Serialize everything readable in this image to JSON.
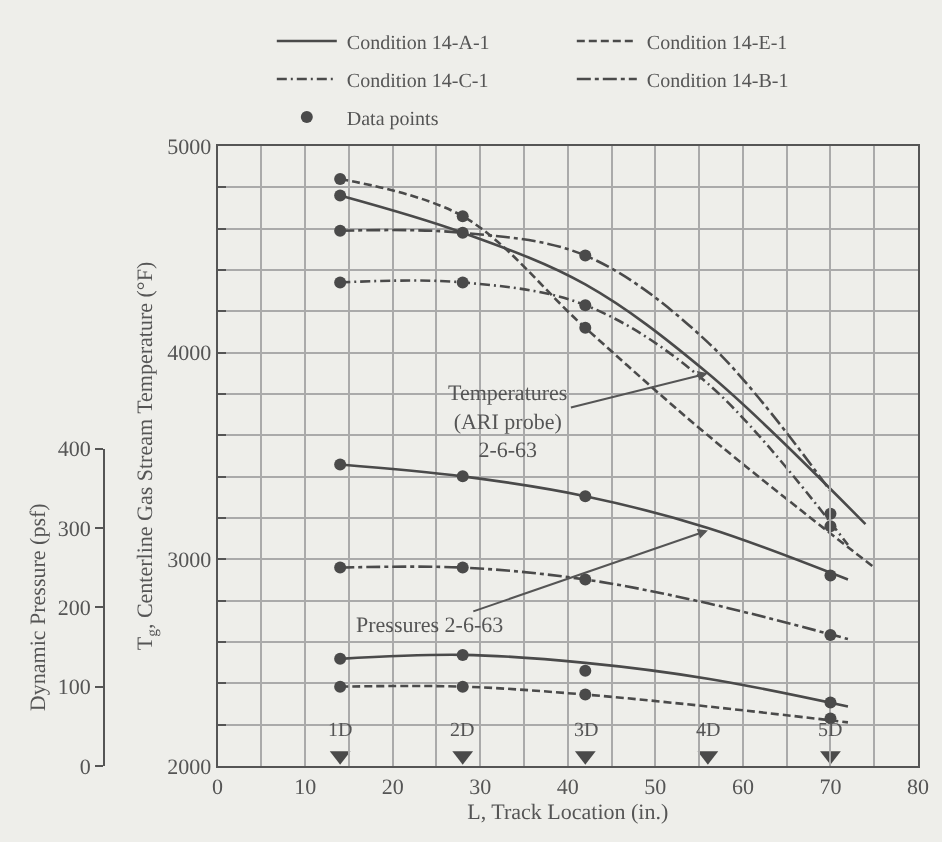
{
  "chart_data": {
    "type": "line",
    "xlabel": "L, Track Location (in.)",
    "ylabel": "T$_{g}$, Centerline Gas Stream Temperature (°F)",
    "y2label": "Dynamic Pressure (psf)",
    "xlim": [
      0,
      80
    ],
    "xticks": [
      0,
      {
        "value": 5,
        "label": null
      },
      10,
      {
        "value": 15,
        "label": null
      },
      20,
      {
        "value": 25,
        "label": null
      },
      30,
      {
        "value": 35,
        "label": null
      },
      40,
      {
        "value": 45,
        "label": null
      },
      50,
      {
        "value": 55,
        "label": null
      },
      60,
      {
        "value": 65,
        "label": null
      },
      70,
      {
        "value": 75,
        "label": null
      },
      80
    ],
    "ylim": [
      2000,
      5000
    ],
    "yticks": [
      2000,
      {
        "value": 2200,
        "label": null
      },
      {
        "value": 2400,
        "label": null
      },
      {
        "value": 2600,
        "label": null
      },
      {
        "value": 2800,
        "label": null
      },
      3000,
      {
        "value": 3200,
        "label": null
      },
      {
        "value": 3400,
        "label": null
      },
      {
        "value": 3600,
        "label": null
      },
      {
        "value": 3800,
        "label": null
      },
      4000,
      {
        "value": 4200,
        "label": null
      },
      {
        "value": 4400,
        "label": null
      },
      {
        "value": 4600,
        "label": null
      },
      {
        "value": 4800,
        "label": null
      },
      5000
    ],
    "y2lim": [
      0,
      400
    ],
    "y2ticks": [
      0,
      100,
      200,
      300,
      400
    ],
    "grid": true,
    "legend": "top",
    "series": [
      {
        "name": "Condition 14-A-1",
        "color": "#4a4a4a",
        "line_style": "solid",
        "marker": "none",
        "x": [
          14,
          28,
          42,
          56,
          74
        ],
        "values": [
          4760,
          4580,
          4330,
          3900,
          3170
        ]
      },
      {
        "name": "Condition 14-E-1",
        "color": "#4a4a4a",
        "line_style": "dashed",
        "marker": "none",
        "x": [
          14,
          28,
          42,
          56,
          75
        ],
        "values": [
          4840,
          4660,
          4120,
          3600,
          2960
        ]
      },
      {
        "name": "Condition 14-C-1",
        "color": "#4a4a4a",
        "line_style": "dashdot",
        "marker": "none",
        "x": [
          14,
          28,
          42,
          56,
          72
        ],
        "values": [
          4340,
          4340,
          4230,
          3850,
          3070
        ]
      },
      {
        "name": "Data points",
        "type": "scatter",
        "color": "#4a4a4a",
        "marker": "circle",
        "x": [
          14,
          14,
          14,
          14,
          28,
          28,
          28,
          42,
          42,
          42,
          70,
          70
        ],
        "values": [
          4840,
          4760,
          4590,
          4340,
          4660,
          4580,
          4340,
          4470,
          4230,
          4120,
          3220,
          3160
        ]
      },
      {
        "name": "Condition 14-B-1",
        "color": "#4a4a4a",
        "line_style": "longdash",
        "marker": "none",
        "x": [
          14,
          28,
          42,
          56,
          70
        ],
        "values": [
          4590,
          4580,
          4470,
          4050,
          3330
        ]
      },
      {
        "type": "scatter",
        "axis": "y2",
        "color": "#4a4a4a",
        "marker": "circle",
        "x": [
          14,
          14,
          14,
          14,
          28,
          28,
          28,
          28,
          42,
          42,
          42,
          42,
          70,
          70,
          70,
          70
        ],
        "values": [
          380,
          250,
          135,
          100,
          365,
          250,
          140,
          100,
          340,
          235,
          120,
          90,
          240,
          165,
          80,
          60
        ]
      },
      {
        "axis": "y2",
        "color": "#4a4a4a",
        "line_style": "solid",
        "marker": "none",
        "x": [
          14,
          28,
          42,
          56,
          72
        ],
        "values": [
          380,
          365,
          340,
          300,
          235
        ]
      },
      {
        "axis": "y2",
        "color": "#4a4a4a",
        "line_style": "longdash",
        "marker": "none",
        "x": [
          14,
          28,
          42,
          56,
          72
        ],
        "values": [
          250,
          250,
          235,
          205,
          160
        ]
      },
      {
        "axis": "y2",
        "color": "#4a4a4a",
        "line_style": "solid",
        "marker": "none",
        "x": [
          14,
          28,
          42,
          56,
          72
        ],
        "values": [
          135,
          140,
          130,
          110,
          75
        ]
      },
      {
        "axis": "y2",
        "color": "#4a4a4a",
        "line_style": "dashed",
        "marker": "none",
        "x": [
          14,
          28,
          42,
          56,
          72
        ],
        "values": [
          100,
          100,
          90,
          75,
          55
        ]
      },
      {
        "type": "scatter",
        "color": "#4a4a4a",
        "marker": "triangle",
        "x": [
          14,
          28,
          42,
          56,
          70
        ],
        "values": [
          2050,
          2050,
          2050,
          2050,
          2050
        ]
      }
    ],
    "annotations": [
      {
        "text": "Temperatures\n(ARI probe)\n2-6-63",
        "x": 56,
        "y": 3900
      },
      {
        "text": "Pressures 2-6-63",
        "x": 56,
        "y": 3140
      },
      {
        "text": "1D",
        "x": 14,
        "y": 2050
      },
      {
        "text": "2D",
        "x": 28,
        "y": 2050
      },
      {
        "text": "3D",
        "x": 42,
        "y": 2050
      },
      {
        "text": "4D",
        "x": 56,
        "y": 2050
      },
      {
        "text": "5D",
        "x": 70,
        "y": 2050
      }
    ]
  }
}
